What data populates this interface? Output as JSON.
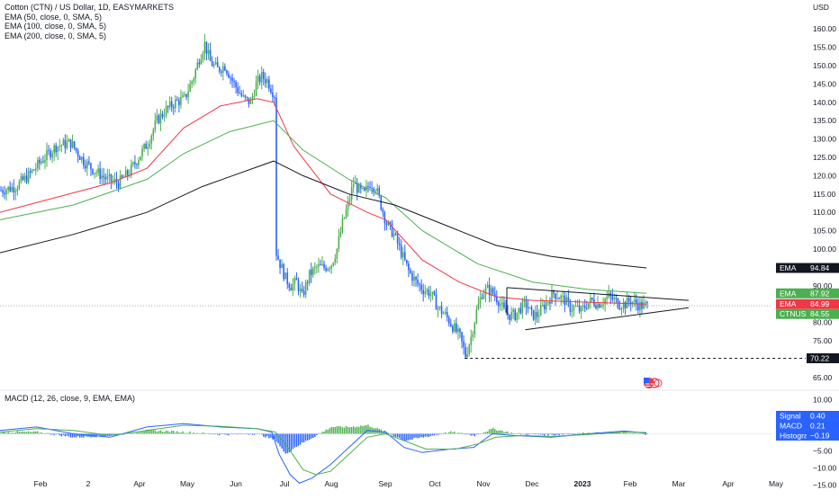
{
  "header": {
    "title": "Cotton (CTN) / US Dollar, 1D, EASYMARKETS",
    "indicators": [
      "EMA (50, close, 0, SMA, 5)",
      "EMA (100, close, 0, SMA, 5)",
      "EMA (200, close, 0, SMA, 5)"
    ],
    "currency": "USD"
  },
  "macd_legend": "MACD (12, 26, close, 9, EMA, EMA)",
  "colors": {
    "up": "#26a69a",
    "down": "#2962ff",
    "candle_up": "#4caf50",
    "candle_down": "#2962ff",
    "ema50": "#f23645",
    "ema100": "#4caf50",
    "ema200": "#131722",
    "macd_line": "#2962ff",
    "signal_line": "#4caf50",
    "hist_pos": "#4caf50",
    "hist_neg": "#2962ff"
  },
  "badges": {
    "ema200": {
      "label": "EMA",
      "value": "94.84"
    },
    "ema100": {
      "label": "EMA",
      "value": "87.92"
    },
    "ema50": {
      "label": "EMA",
      "value": "84.99"
    },
    "price": {
      "label": "CTNUSD",
      "value": "84.55"
    },
    "level": {
      "value": "70.22"
    },
    "signal": {
      "label": "Signal",
      "value": "0.40"
    },
    "macd": {
      "label": "MACD",
      "value": "0.21"
    },
    "histogram": {
      "label": "Histogram",
      "value": "−0.19"
    }
  },
  "chart_data": {
    "type": "candlestick",
    "y_ticks": [
      "160.00",
      "155.00",
      "150.00",
      "145.00",
      "140.00",
      "135.00",
      "130.00",
      "125.00",
      "120.00",
      "115.00",
      "110.00",
      "105.00",
      "100.00",
      "95.00",
      "90.00",
      "85.00",
      "80.00",
      "75.00",
      "70.00",
      "65.00"
    ],
    "ylim": [
      62,
      163
    ],
    "macd_ticks": [
      "10.00",
      "5.00",
      "0.00",
      "−5.00",
      "−10.00",
      "−15.00"
    ],
    "macd_ylim": [
      -16.5,
      12
    ],
    "x_labels": [
      "Feb",
      "2",
      "Apr",
      "May",
      "Jun",
      "Jul",
      "Aug",
      "Sep",
      "Oct",
      "Nov",
      "Dec",
      "2023",
      "Feb",
      "Mar",
      "Apr",
      "May"
    ],
    "bold_x_labels": [
      "2023"
    ],
    "price_path": [
      [
        0,
        116
      ],
      [
        8,
        117
      ],
      [
        15,
        120
      ],
      [
        22,
        124
      ],
      [
        30,
        128
      ],
      [
        38,
        129
      ],
      [
        45,
        124
      ],
      [
        52,
        121
      ],
      [
        58,
        119
      ],
      [
        64,
        118
      ],
      [
        70,
        121
      ],
      [
        75,
        125
      ],
      [
        80,
        129
      ],
      [
        85,
        135
      ],
      [
        90,
        138
      ],
      [
        95,
        140
      ],
      [
        100,
        141
      ],
      [
        105,
        147
      ],
      [
        108,
        152
      ],
      [
        111,
        156
      ],
      [
        114,
        151
      ],
      [
        118,
        149
      ],
      [
        122,
        150
      ],
      [
        127,
        145
      ],
      [
        132,
        141
      ],
      [
        136,
        140
      ],
      [
        139,
        145
      ],
      [
        142,
        147
      ],
      [
        145,
        146
      ],
      [
        149,
        142
      ],
      [
        150,
        99
      ],
      [
        152,
        96
      ],
      [
        155,
        92
      ],
      [
        158,
        90
      ],
      [
        161,
        91
      ],
      [
        164,
        87
      ],
      [
        168,
        93
      ],
      [
        172,
        95
      ],
      [
        176,
        95
      ],
      [
        180,
        96
      ],
      [
        183,
        100
      ],
      [
        186,
        107
      ],
      [
        189,
        112
      ],
      [
        192,
        118
      ],
      [
        195,
        116
      ],
      [
        198,
        115
      ],
      [
        201,
        118
      ],
      [
        204,
        117
      ],
      [
        207,
        112
      ],
      [
        210,
        107
      ],
      [
        214,
        104
      ],
      [
        218,
        99
      ],
      [
        222,
        94
      ],
      [
        226,
        91
      ],
      [
        230,
        89
      ],
      [
        234,
        88
      ],
      [
        238,
        84
      ],
      [
        242,
        82
      ],
      [
        246,
        79
      ],
      [
        250,
        76
      ],
      [
        253,
        71
      ],
      [
        256,
        76
      ],
      [
        259,
        83
      ],
      [
        262,
        88
      ],
      [
        265,
        89
      ],
      [
        268,
        88
      ],
      [
        271,
        86
      ],
      [
        274,
        83
      ],
      [
        277,
        82
      ],
      [
        280,
        82
      ],
      [
        283,
        84
      ],
      [
        286,
        85
      ],
      [
        289,
        82
      ],
      [
        292,
        82
      ],
      [
        295,
        84
      ],
      [
        298,
        86
      ],
      [
        301,
        88
      ],
      [
        304,
        87
      ],
      [
        307,
        86
      ],
      [
        310,
        84
      ],
      [
        313,
        84
      ],
      [
        316,
        83
      ],
      [
        319,
        85
      ],
      [
        322,
        86
      ],
      [
        325,
        85
      ],
      [
        328,
        86
      ],
      [
        331,
        87
      ],
      [
        334,
        86
      ],
      [
        337,
        85
      ],
      [
        340,
        85
      ],
      [
        343,
        86
      ],
      [
        346,
        85
      ],
      [
        349,
        84.5
      ],
      [
        352,
        84.55
      ]
    ],
    "ema50_path": [
      [
        0,
        110
      ],
      [
        30,
        114
      ],
      [
        60,
        118
      ],
      [
        80,
        122
      ],
      [
        100,
        133
      ],
      [
        120,
        139
      ],
      [
        140,
        141
      ],
      [
        149,
        140
      ],
      [
        160,
        128
      ],
      [
        180,
        115
      ],
      [
        200,
        110
      ],
      [
        210,
        108
      ],
      [
        230,
        97
      ],
      [
        250,
        91
      ],
      [
        270,
        87
      ],
      [
        290,
        86
      ],
      [
        320,
        85.5
      ],
      [
        352,
        84.99
      ]
    ],
    "ema100_path": [
      [
        0,
        108
      ],
      [
        40,
        112
      ],
      [
        80,
        119
      ],
      [
        100,
        126
      ],
      [
        125,
        132
      ],
      [
        149,
        135
      ],
      [
        165,
        127
      ],
      [
        190,
        119
      ],
      [
        210,
        114
      ],
      [
        230,
        105
      ],
      [
        260,
        96
      ],
      [
        290,
        91
      ],
      [
        320,
        89
      ],
      [
        352,
        87.92
      ]
    ],
    "ema200_path": [
      [
        0,
        99
      ],
      [
        40,
        104
      ],
      [
        80,
        110
      ],
      [
        110,
        117
      ],
      [
        149,
        124
      ],
      [
        165,
        120
      ],
      [
        190,
        115
      ],
      [
        215,
        112
      ],
      [
        240,
        107
      ],
      [
        270,
        101
      ],
      [
        300,
        98
      ],
      [
        330,
        96
      ],
      [
        352,
        94.84
      ]
    ],
    "triangle": {
      "upper": [
        [
          276,
          89.5
        ],
        [
          375,
          86
        ]
      ],
      "lower": [
        [
          286,
          78
        ],
        [
          375,
          84
        ]
      ]
    },
    "support_level": 70.22,
    "macd_path": [
      [
        0,
        1
      ],
      [
        20,
        2
      ],
      [
        40,
        0
      ],
      [
        60,
        -1
      ],
      [
        80,
        2
      ],
      [
        100,
        3
      ],
      [
        120,
        2
      ],
      [
        140,
        1.5
      ],
      [
        148,
        0.5
      ],
      [
        152,
        -6
      ],
      [
        158,
        -12
      ],
      [
        163,
        -14.5
      ],
      [
        170,
        -13
      ],
      [
        180,
        -9
      ],
      [
        190,
        -4
      ],
      [
        200,
        1
      ],
      [
        210,
        0.5
      ],
      [
        220,
        -4
      ],
      [
        230,
        -5.5
      ],
      [
        245,
        -4.5
      ],
      [
        258,
        -4
      ],
      [
        268,
        0
      ],
      [
        280,
        -0.5
      ],
      [
        300,
        -1
      ],
      [
        320,
        0
      ],
      [
        340,
        0.8
      ],
      [
        352,
        0.21
      ]
    ],
    "signal_path": [
      [
        0,
        0.5
      ],
      [
        20,
        1.5
      ],
      [
        40,
        1
      ],
      [
        60,
        -0.5
      ],
      [
        80,
        1
      ],
      [
        100,
        2.5
      ],
      [
        120,
        2.2
      ],
      [
        140,
        1.5
      ],
      [
        150,
        0.5
      ],
      [
        158,
        -5
      ],
      [
        165,
        -10.5
      ],
      [
        172,
        -12
      ],
      [
        180,
        -11
      ],
      [
        190,
        -6
      ],
      [
        200,
        -1
      ],
      [
        210,
        0
      ],
      [
        220,
        -2
      ],
      [
        232,
        -4.5
      ],
      [
        248,
        -4.5
      ],
      [
        260,
        -3
      ],
      [
        270,
        -1
      ],
      [
        285,
        -0.5
      ],
      [
        300,
        -0.8
      ],
      [
        320,
        -0.2
      ],
      [
        340,
        0.5
      ],
      [
        352,
        0.4
      ]
    ],
    "histogram_profile": [
      [
        0,
        0.5
      ],
      [
        20,
        0.5
      ],
      [
        40,
        -1
      ],
      [
        60,
        -0.5
      ],
      [
        80,
        1
      ],
      [
        100,
        0.5
      ],
      [
        120,
        -0.2
      ],
      [
        140,
        0
      ],
      [
        150,
        -2
      ],
      [
        155,
        -6
      ],
      [
        160,
        -4
      ],
      [
        170,
        -1
      ],
      [
        180,
        2
      ],
      [
        190,
        2
      ],
      [
        200,
        2.5
      ],
      [
        210,
        0.5
      ],
      [
        220,
        -2
      ],
      [
        230,
        -1
      ],
      [
        245,
        0.5
      ],
      [
        258,
        -0.5
      ],
      [
        268,
        1.5
      ],
      [
        280,
        0
      ],
      [
        300,
        -0.3
      ],
      [
        320,
        0.2
      ],
      [
        340,
        0.3
      ],
      [
        352,
        -0.19
      ]
    ]
  }
}
